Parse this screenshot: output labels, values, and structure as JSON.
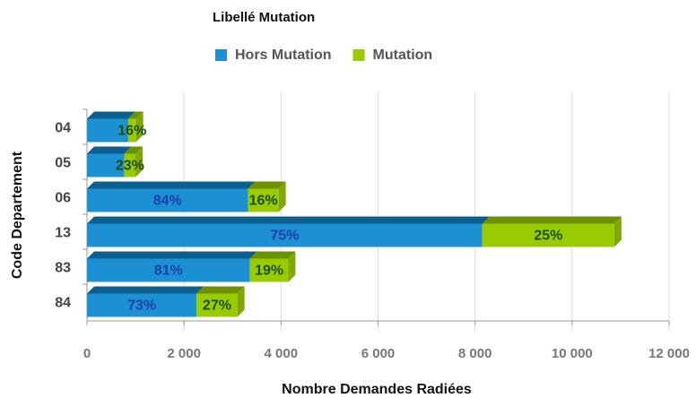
{
  "chart_data": {
    "type": "stacked-bar-horizontal",
    "title": "Libellé Mutation",
    "xlabel": "Nombre Demandes Radiées",
    "ylabel": "Code Departement",
    "categories": [
      "04",
      "05",
      "06",
      "13",
      "83",
      "84"
    ],
    "series": [
      {
        "name": "Hors Mutation",
        "color": "#1b90d2",
        "values": [
          850,
          770,
          3320,
          8150,
          3360,
          2260
        ],
        "percent_labels": [
          "",
          "",
          "84%",
          "75%",
          "81%",
          "73%"
        ]
      },
      {
        "name": "Mutation",
        "color": "#99cc00",
        "values": [
          160,
          230,
          630,
          2720,
          790,
          840
        ],
        "percent_labels": [
          "16%",
          "23%",
          "16%",
          "25%",
          "19%",
          "27%"
        ]
      }
    ],
    "xlim": [
      0,
      12000
    ],
    "xticks": [
      0,
      {
        "value": 2000,
        "label": "2 000"
      },
      {
        "value": 4000,
        "label": "4 000"
      },
      {
        "value": 6000,
        "label": "6 000"
      },
      {
        "value": 8000,
        "label": "8 000"
      },
      {
        "value": 10000,
        "label": "10 000"
      },
      {
        "value": 12000,
        "label": "12 000"
      }
    ],
    "grid": true
  }
}
